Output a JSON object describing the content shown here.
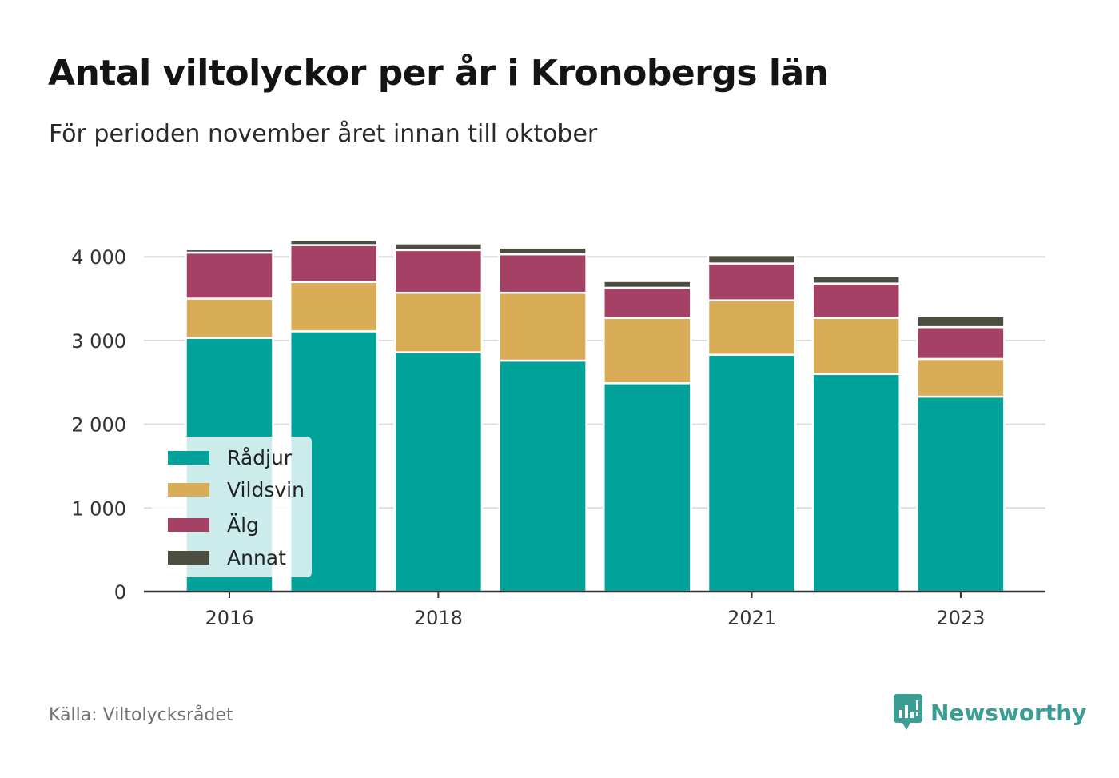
{
  "title": "Antal viltolyckor per år i Kronobergs län",
  "subtitle": "För perioden november året innan till oktober",
  "source": "Källa: Viltolycksrådet",
  "brand": {
    "name": "Newsworthy",
    "icon": "newsworthy-logo-icon",
    "color": "#3a9e94"
  },
  "chart_data": {
    "type": "bar",
    "stacked": true,
    "years": [
      2016,
      2017,
      2018,
      2019,
      2020,
      2021,
      2022,
      2023
    ],
    "x_tick_labels": [
      "2016",
      "2018",
      "2021",
      "2023"
    ],
    "x_tick_years": [
      2016,
      2018,
      2021,
      2023
    ],
    "series": [
      {
        "name": "Rådjur",
        "color": "#00a29a",
        "values": [
          3030,
          3110,
          2860,
          2760,
          2490,
          2830,
          2600,
          2330
        ]
      },
      {
        "name": "Vildsvin",
        "color": "#d9ad58",
        "values": [
          470,
          590,
          710,
          810,
          780,
          650,
          670,
          450
        ]
      },
      {
        "name": "Älg",
        "color": "#a54165",
        "values": [
          550,
          440,
          510,
          460,
          360,
          440,
          410,
          380
        ]
      },
      {
        "name": "Annat",
        "color": "#4e4e40",
        "values": [
          40,
          60,
          80,
          80,
          80,
          100,
          90,
          130
        ]
      }
    ],
    "y_ticks": [
      0,
      1000,
      2000,
      3000,
      4000
    ],
    "y_tick_labels": [
      "0",
      "1 000",
      "2 000",
      "3 000",
      "4 000"
    ],
    "ylim": [
      0,
      4250
    ],
    "grid": true,
    "legend_position": "bottom-left",
    "xlabel": "",
    "ylabel": ""
  }
}
